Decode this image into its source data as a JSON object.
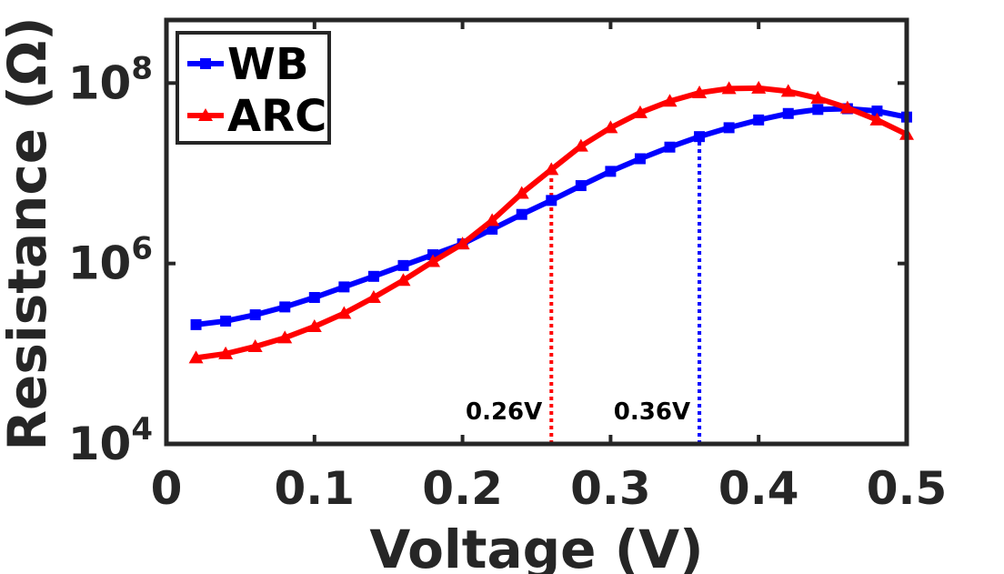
{
  "chart_data": {
    "type": "line",
    "xlabel": "Voltage (V)",
    "ylabel": "Resistance (Ω)",
    "yscale": "log",
    "xlim": [
      0,
      0.5
    ],
    "ylim": [
      10000,
      500000000
    ],
    "xticks": [
      0,
      0.1,
      0.2,
      0.3,
      0.4,
      0.5
    ],
    "xtick_labels": [
      "0",
      "0.1",
      "0.2",
      "0.3",
      "0.4",
      "0.5"
    ],
    "yticks": [
      10000,
      1000000,
      100000000
    ],
    "ytick_labels": [
      {
        "base": "10",
        "exp": "4"
      },
      {
        "base": "10",
        "exp": "6"
      },
      {
        "base": "10",
        "exp": "8"
      }
    ],
    "grid": false,
    "legend_position": "top-left",
    "series": [
      {
        "name": "WB",
        "color": "#0000ff",
        "marker": "square",
        "x": [
          0.02,
          0.04,
          0.06,
          0.08,
          0.1,
          0.12,
          0.14,
          0.16,
          0.18,
          0.2,
          0.22,
          0.24,
          0.26,
          0.28,
          0.3,
          0.32,
          0.34,
          0.36,
          0.38,
          0.4,
          0.42,
          0.44,
          0.46,
          0.48,
          0.5
        ],
        "y": [
          210000,
          230000,
          270000,
          330000,
          420000,
          550000,
          720000,
          950000,
          1250000,
          1650000,
          2400000,
          3500000,
          5000000,
          7300000,
          10500000,
          14500000,
          19500000,
          25500000,
          32000000,
          39000000,
          46000000,
          51000000,
          52000000,
          49000000,
          42000000
        ]
      },
      {
        "name": "ARC",
        "color": "#ff0000",
        "marker": "triangle",
        "x": [
          0.02,
          0.04,
          0.06,
          0.08,
          0.1,
          0.12,
          0.14,
          0.16,
          0.18,
          0.2,
          0.22,
          0.24,
          0.26,
          0.28,
          0.3,
          0.32,
          0.34,
          0.36,
          0.38,
          0.4,
          0.42,
          0.44,
          0.46,
          0.48,
          0.5
        ],
        "y": [
          90000,
          100000,
          120000,
          150000,
          200000,
          280000,
          420000,
          650000,
          1050000,
          1650000,
          3000000,
          6000000,
          11000000,
          20000000,
          32000000,
          47000000,
          63000000,
          78000000,
          87000000,
          88000000,
          81000000,
          68000000,
          53000000,
          39000000,
          27000000
        ]
      }
    ],
    "annotations": [
      {
        "text": "0.26V",
        "x": 0.26,
        "color": "#ff0000",
        "y_from": 10000,
        "y_to": 11000000
      },
      {
        "text": "0.36V",
        "x": 0.36,
        "color": "#0000ff",
        "y_from": 10000,
        "y_to": 25500000
      }
    ]
  }
}
